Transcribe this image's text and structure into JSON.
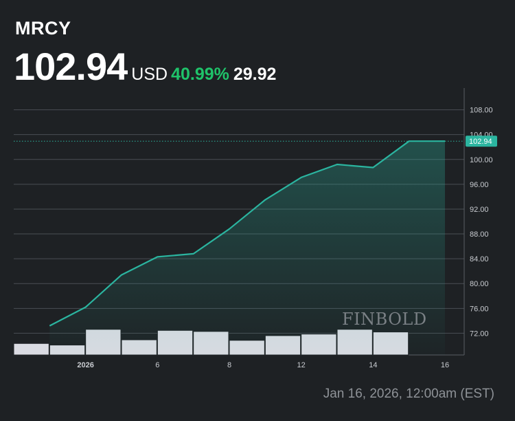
{
  "header": {
    "ticker": "MRCY",
    "price": "102.94",
    "currency": "USD",
    "change_pct": "40.99%",
    "change_abs": "29.92"
  },
  "timestamp": "Jan 16, 2026, 12:00am (EST)",
  "watermark": "FINBOLD",
  "colors": {
    "background": "#1e2124",
    "line": "#2bb5a0",
    "positive": "#1fc36a",
    "volume_bars": "#dadbe2",
    "grid": "#4a4e55"
  },
  "chart_data": {
    "type": "line",
    "series": [
      {
        "values": [
          73.2,
          76.2,
          81.4,
          84.3,
          84.8,
          88.8,
          93.5,
          97.1,
          99.2,
          98.7,
          102.94,
          102.94
        ],
        "x": [
          1.0,
          2.0,
          3.0,
          4.0,
          5.0,
          6.0,
          7.0,
          8.0,
          9.0,
          10.0,
          11.0,
          12.0
        ]
      }
    ],
    "volume": {
      "x": [
        1.0,
        2.0,
        3.0,
        4.0,
        5.0,
        6.0,
        7.0,
        8.0,
        9.0,
        10.0,
        11.0
      ],
      "values": [
        0.44,
        0.38,
        0.98,
        0.58,
        0.94,
        0.9,
        0.56,
        0.74,
        0.8,
        0.98,
        0.88
      ]
    },
    "x_ticks": [
      {
        "x": 2.0,
        "label": "2026"
      },
      {
        "x": 4.0,
        "label": "6"
      },
      {
        "x": 6.0,
        "label": "8"
      },
      {
        "x": 8.0,
        "label": "12"
      },
      {
        "x": 10.0,
        "label": "14"
      },
      {
        "x": 12.0,
        "label": "16"
      }
    ],
    "y_ticks": [
      "108.00",
      "104.00",
      "100.00",
      "96.00",
      "92.00",
      "88.00",
      "84.00",
      "80.00",
      "76.00",
      "72.00"
    ],
    "last_value_label": "102.94",
    "ylim": [
      68.5,
      111.5
    ],
    "xlim": [
      0.0,
      12.0
    ],
    "grid": true
  }
}
